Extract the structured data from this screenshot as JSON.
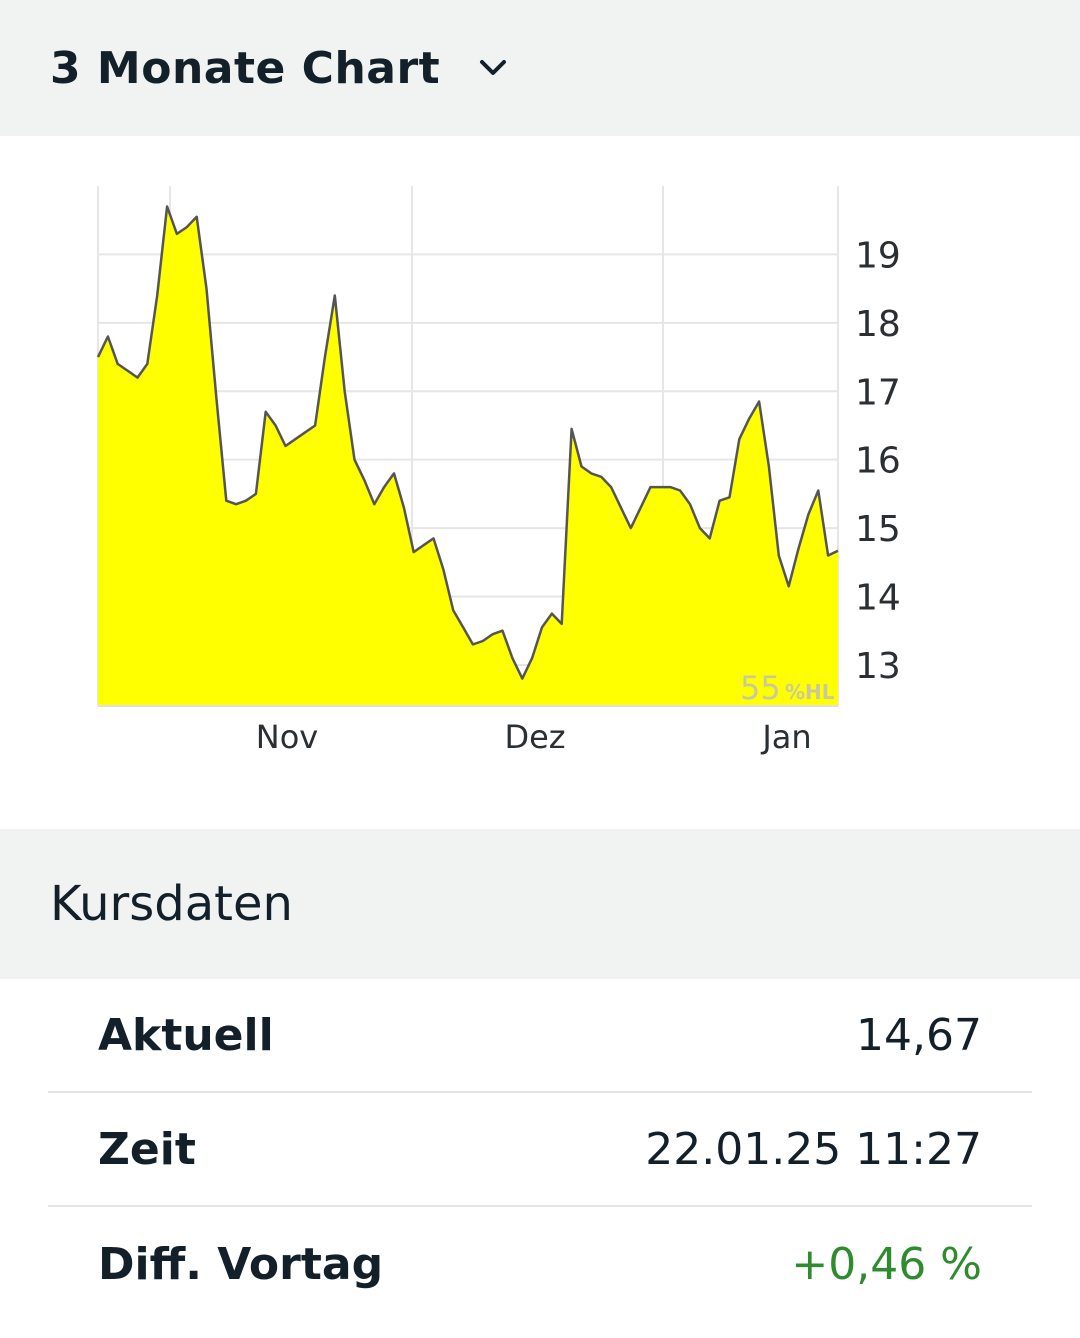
{
  "chart_section": {
    "title": "3 Monate Chart",
    "chevron_icon": "chevron-down-icon"
  },
  "chart_data": {
    "type": "area",
    "fill_color": "#ffff00",
    "line_color": "#555555",
    "ylim": [
      12.4,
      20.0
    ],
    "y_ticks": [
      13,
      14,
      15,
      16,
      17,
      18,
      19
    ],
    "y_tick_labels": [
      "13",
      "14",
      "15",
      "16",
      "17",
      "18",
      "19"
    ],
    "x_labels": [
      "Nov",
      "Dez",
      "Jan"
    ],
    "watermark_value": "55",
    "watermark_unit": "%HL",
    "grid": true,
    "series": [
      {
        "values": [
          17.5,
          17.8,
          17.4,
          17.3,
          17.2,
          17.4,
          18.4,
          19.7,
          19.3,
          19.4,
          19.55,
          18.5,
          16.9,
          15.4,
          15.35,
          15.4,
          15.5,
          16.7,
          16.5,
          16.2,
          16.3,
          16.4,
          16.5,
          17.5,
          18.4,
          17.0,
          16.0,
          15.7,
          15.35,
          15.6,
          15.8,
          15.3,
          14.65,
          14.75,
          14.85,
          14.4,
          13.8,
          13.55,
          13.3,
          13.35,
          13.45,
          13.5,
          13.1,
          12.8,
          13.1,
          13.55,
          13.75,
          13.6,
          16.45,
          15.9,
          15.8,
          15.75,
          15.6,
          15.3,
          15.0,
          15.3,
          15.6,
          15.6,
          15.6,
          15.55,
          15.35,
          15.0,
          14.85,
          15.4,
          15.45,
          16.3,
          16.6,
          16.85,
          15.9,
          14.6,
          14.15,
          14.7,
          15.2,
          15.55,
          14.6,
          14.67
        ]
      }
    ]
  },
  "kurs_section": {
    "title": "Kursdaten",
    "rows": [
      {
        "label": "Aktuell",
        "value": "14,67"
      },
      {
        "label": "Zeit",
        "value": "22.01.25 11:27"
      },
      {
        "label": "Diff. Vortag",
        "value": "+0,46 %"
      }
    ]
  }
}
